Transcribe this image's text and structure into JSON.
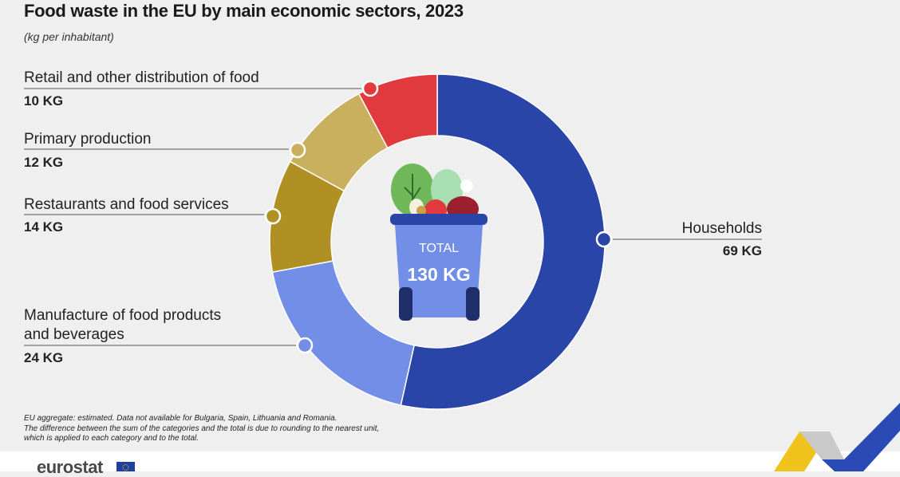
{
  "chart_data": {
    "type": "pie",
    "title": "Food waste in the EU by main economic sectors, 2023",
    "subtitle": "(kg per inhabitant)",
    "total_label": "TOTAL",
    "total_value": "130 KG",
    "slices": [
      {
        "name": "Households",
        "value": 69,
        "value_label": "69 KG",
        "color": "#2a45a8"
      },
      {
        "name": "Manufacture of food products and beverages",
        "name_lines": [
          "Manufacture of food products",
          "and beverages"
        ],
        "value": 24,
        "value_label": "24 KG",
        "color": "#728ee6"
      },
      {
        "name": "Restaurants and food services",
        "value": 14,
        "value_label": "14 KG",
        "color": "#b08f23"
      },
      {
        "name": "Primary production",
        "value": 12,
        "value_label": "12 KG",
        "color": "#c8b05f"
      },
      {
        "name": "Retail and other distribution of food",
        "value": 10,
        "value_label": "10 KG",
        "color": "#e03a3e"
      }
    ]
  },
  "footnote": [
    "EU aggregate: estimated. Data not available for Bulgaria, Spain, Lithuania and Romania.",
    "The difference between the sum of the categories and the total is due to rounding to the nearest unit,",
    "which is applied to each category and to the total."
  ],
  "logo": {
    "text": "eurostat"
  }
}
